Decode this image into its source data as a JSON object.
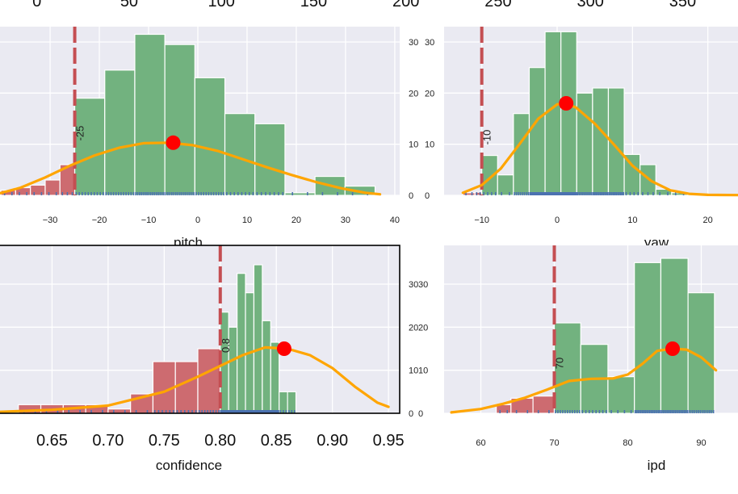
{
  "colors": {
    "panel_bg": "#eaeaf2",
    "grid": "#ffffff",
    "pass_bar": "#72b27f",
    "fail_bar": "#cd6b70",
    "kde": "#ffa500",
    "mean_dot": "#ff0000",
    "threshold": "#c44e52",
    "rug": "#4c72b0"
  },
  "chart_data": [
    {
      "name": "top-strip",
      "type": "bar",
      "x_ticks": [
        "0",
        "50",
        "100",
        "150",
        "200",
        "250",
        "300",
        "350"
      ],
      "x_tick_values": [
        0,
        50,
        100,
        150,
        200,
        250,
        300,
        350
      ],
      "xlim": [
        -20,
        380
      ],
      "note": "partially visible axis tick labels only"
    },
    {
      "name": "pitch",
      "type": "bar",
      "xlabel": "pitch",
      "xlim": [
        -41,
        41
      ],
      "ylim": [
        0,
        33
      ],
      "x_ticks": [
        "−30",
        "−20",
        "−10",
        "0",
        "10",
        "20",
        "30",
        "40"
      ],
      "x_tick_values": [
        -30,
        -20,
        -10,
        0,
        10,
        20,
        30,
        40
      ],
      "y_ticks": [
        "0",
        "10",
        "20",
        "30"
      ],
      "y_tick_values": [
        0,
        10,
        20,
        30
      ],
      "threshold": -25,
      "threshold_label": "-25",
      "bins": [
        {
          "start": -40,
          "end": -37,
          "value": 1,
          "pass": false
        },
        {
          "start": -37,
          "end": -34,
          "value": 1.5,
          "pass": false
        },
        {
          "start": -34,
          "end": -31,
          "value": 2,
          "pass": false
        },
        {
          "start": -31,
          "end": -28,
          "value": 3,
          "pass": false
        },
        {
          "start": -28,
          "end": -25,
          "value": 6,
          "pass": false
        },
        {
          "start": -25,
          "end": -18.9,
          "value": 19,
          "pass": true
        },
        {
          "start": -18.9,
          "end": -12.8,
          "value": 24.5,
          "pass": true
        },
        {
          "start": -12.8,
          "end": -6.7,
          "value": 31.5,
          "pass": true
        },
        {
          "start": -6.7,
          "end": -0.6,
          "value": 29.5,
          "pass": true
        },
        {
          "start": -0.6,
          "end": 5.5,
          "value": 23,
          "pass": true
        },
        {
          "start": 5.5,
          "end": 11.6,
          "value": 16,
          "pass": true
        },
        {
          "start": 11.6,
          "end": 17.7,
          "value": 14,
          "pass": true
        },
        {
          "start": 17.7,
          "end": 23.8,
          "value": 0.5,
          "pass": true
        },
        {
          "start": 23.8,
          "end": 29.9,
          "value": 3.7,
          "pass": true
        },
        {
          "start": 29.9,
          "end": 36,
          "value": 1.8,
          "pass": true
        }
      ],
      "kde_x": [
        -41,
        -36,
        -31,
        -26,
        -21,
        -16,
        -11,
        -6,
        -1,
        4,
        9,
        14,
        19,
        24,
        29,
        34,
        37
      ],
      "kde_y": [
        0.2,
        1.5,
        3.5,
        5.8,
        7.8,
        9.3,
        10.2,
        10.3,
        9.8,
        8.7,
        7.1,
        5.5,
        4.0,
        2.6,
        1.4,
        0.5,
        0.2
      ],
      "mean": {
        "x": -5,
        "y": 10.3
      }
    },
    {
      "name": "yaw",
      "type": "bar",
      "xlabel": "yaw",
      "xlim": [
        -15,
        24
      ],
      "ylim": [
        0,
        33
      ],
      "x_ticks": [
        "−10",
        "0",
        "10",
        "20"
      ],
      "x_tick_values": [
        -10,
        0,
        10,
        20
      ],
      "y_ticks": [
        "0",
        "10",
        "20",
        "30"
      ],
      "y_tick_values": [
        0,
        10,
        20,
        30
      ],
      "threshold": -10,
      "threshold_label": "-10",
      "bins": [
        {
          "start": -12.5,
          "end": -10.9,
          "value": 0.5,
          "pass": false
        },
        {
          "start": -10.9,
          "end": -10,
          "value": 0.6,
          "pass": false
        },
        {
          "start": -10,
          "end": -7.9,
          "value": 7.8,
          "pass": true
        },
        {
          "start": -7.9,
          "end": -5.8,
          "value": 4,
          "pass": true
        },
        {
          "start": -5.8,
          "end": -3.7,
          "value": 16,
          "pass": true
        },
        {
          "start": -3.7,
          "end": -1.6,
          "value": 25,
          "pass": true
        },
        {
          "start": -1.6,
          "end": 0.5,
          "value": 32,
          "pass": true
        },
        {
          "start": 0.5,
          "end": 2.6,
          "value": 32,
          "pass": true
        },
        {
          "start": 2.6,
          "end": 4.7,
          "value": 20,
          "pass": true
        },
        {
          "start": 4.7,
          "end": 6.8,
          "value": 21,
          "pass": true
        },
        {
          "start": 6.8,
          "end": 8.9,
          "value": 21,
          "pass": true
        },
        {
          "start": 8.9,
          "end": 11,
          "value": 8,
          "pass": true
        },
        {
          "start": 11,
          "end": 13.1,
          "value": 6,
          "pass": true
        },
        {
          "start": 13.1,
          "end": 15.2,
          "value": 1.2,
          "pass": true
        },
        {
          "start": 15.2,
          "end": 17.3,
          "value": 0.5,
          "pass": true
        }
      ],
      "kde_x": [
        -12.5,
        -10,
        -7.5,
        -5,
        -2.5,
        0,
        1,
        2.5,
        5,
        7.5,
        10,
        12.5,
        15,
        17.5,
        20,
        24
      ],
      "kde_y": [
        0.5,
        2,
        5.2,
        10,
        15,
        17.8,
        18,
        17.2,
        14,
        10,
        5.8,
        2.8,
        1,
        0.3,
        0.1,
        0.05
      ],
      "mean": {
        "x": 1.2,
        "y": 18
      }
    },
    {
      "name": "confidence",
      "type": "bar",
      "xlabel": "confidence",
      "xlim": [
        0.6,
        0.96
      ],
      "ylim": [
        0,
        39
      ],
      "x_ticks": [
        "0.65",
        "0.70",
        "0.75",
        "0.80",
        "0.85",
        "0.90",
        "0.95"
      ],
      "x_tick_values": [
        0.65,
        0.7,
        0.75,
        0.8,
        0.85,
        0.9,
        0.95
      ],
      "y_ticks": [
        "0",
        "10",
        "20",
        "30"
      ],
      "y_tick_values": [
        0,
        10,
        20,
        30
      ],
      "threshold": 0.8,
      "threshold_label": "0.8",
      "bins": [
        {
          "start": 0.62,
          "end": 0.64,
          "value": 2,
          "pass": false
        },
        {
          "start": 0.64,
          "end": 0.66,
          "value": 2,
          "pass": false
        },
        {
          "start": 0.66,
          "end": 0.68,
          "value": 2,
          "pass": false
        },
        {
          "start": 0.68,
          "end": 0.7,
          "value": 2,
          "pass": false
        },
        {
          "start": 0.7,
          "end": 0.72,
          "value": 1,
          "pass": false
        },
        {
          "start": 0.72,
          "end": 0.74,
          "value": 4.5,
          "pass": false
        },
        {
          "start": 0.74,
          "end": 0.76,
          "value": 12,
          "pass": false
        },
        {
          "start": 0.76,
          "end": 0.78,
          "value": 12,
          "pass": false
        },
        {
          "start": 0.78,
          "end": 0.8,
          "value": 15,
          "pass": false
        },
        {
          "start": 0.8,
          "end": 0.8075,
          "value": 23.5,
          "pass": true
        },
        {
          "start": 0.8075,
          "end": 0.815,
          "value": 20,
          "pass": true
        },
        {
          "start": 0.815,
          "end": 0.8225,
          "value": 32.5,
          "pass": true
        },
        {
          "start": 0.8225,
          "end": 0.83,
          "value": 28,
          "pass": true
        },
        {
          "start": 0.83,
          "end": 0.8375,
          "value": 34.5,
          "pass": true
        },
        {
          "start": 0.8375,
          "end": 0.845,
          "value": 21.5,
          "pass": true
        },
        {
          "start": 0.845,
          "end": 0.8525,
          "value": 16.5,
          "pass": true
        },
        {
          "start": 0.8525,
          "end": 0.86,
          "value": 5,
          "pass": true
        },
        {
          "start": 0.86,
          "end": 0.8675,
          "value": 5,
          "pass": true
        }
      ],
      "kde_x": [
        0.6,
        0.65,
        0.7,
        0.75,
        0.78,
        0.8,
        0.82,
        0.84,
        0.86,
        0.88,
        0.9,
        0.92,
        0.94,
        0.95
      ],
      "kde_y": [
        0.3,
        0.8,
        1.8,
        5,
        8.5,
        11,
        13.5,
        15.3,
        15,
        13.5,
        10.5,
        6.2,
        2.5,
        1.5
      ],
      "mean": {
        "x": 0.857,
        "y": 15
      }
    },
    {
      "name": "ipd",
      "type": "bar",
      "xlabel": "ipd",
      "xlim": [
        55,
        95
      ],
      "ylim": [
        0,
        39
      ],
      "x_ticks": [
        "60",
        "70",
        "80",
        "90"
      ],
      "x_tick_values": [
        60,
        70,
        80,
        90
      ],
      "y_ticks": [
        "0",
        "10",
        "20",
        "30"
      ],
      "y_tick_values": [
        0,
        10,
        20,
        30
      ],
      "threshold": 70,
      "threshold_label": "70",
      "bins": [
        {
          "start": 62.1,
          "end": 64.1,
          "value": 2,
          "pass": false
        },
        {
          "start": 64.1,
          "end": 67.1,
          "value": 3.5,
          "pass": false
        },
        {
          "start": 67.1,
          "end": 70,
          "value": 4,
          "pass": false
        },
        {
          "start": 70,
          "end": 73.6,
          "value": 21,
          "pass": true
        },
        {
          "start": 73.6,
          "end": 77.3,
          "value": 16,
          "pass": true
        },
        {
          "start": 77.3,
          "end": 80.9,
          "value": 8.5,
          "pass": true
        },
        {
          "start": 80.9,
          "end": 84.5,
          "value": 35,
          "pass": true
        },
        {
          "start": 84.5,
          "end": 88.2,
          "value": 36,
          "pass": true
        },
        {
          "start": 88.2,
          "end": 91.8,
          "value": 28,
          "pass": true
        }
      ],
      "kde_x": [
        56,
        60,
        63,
        66,
        69,
        72,
        75,
        78,
        80,
        82,
        84,
        86,
        88,
        90,
        92
      ],
      "kde_y": [
        0.2,
        1,
        2.2,
        3.6,
        5.5,
        7.5,
        8,
        8.1,
        9,
        11.5,
        14.5,
        15,
        14.8,
        13,
        10
      ],
      "mean": {
        "x": 86.1,
        "y": 15
      }
    }
  ]
}
